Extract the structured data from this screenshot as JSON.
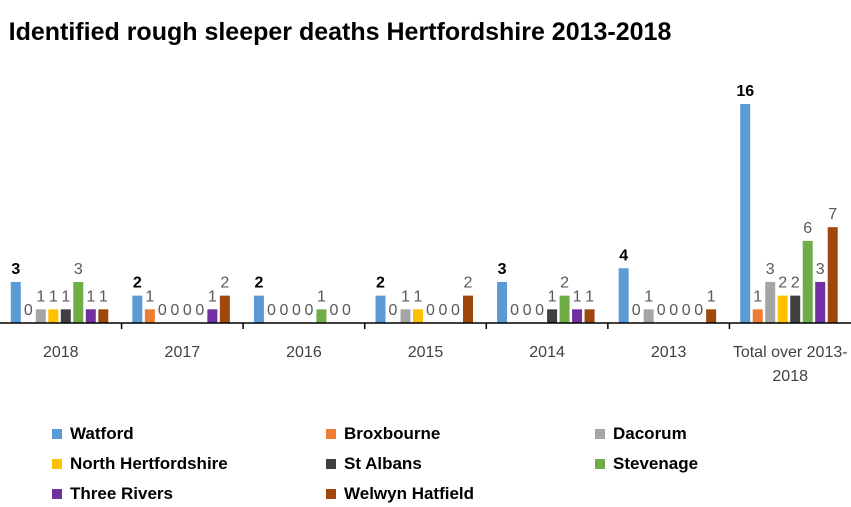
{
  "chart_data": {
    "type": "bar",
    "title": "Identified rough sleeper deaths Hertfordshire 2013-2018",
    "categories": [
      "2018",
      "2017",
      "2016",
      "2015",
      "2014",
      "2013",
      "Total over 2013-2018"
    ],
    "ylim": [
      0,
      16
    ],
    "series": [
      {
        "name": "Watford",
        "color": "#5b9bd5",
        "values": [
          3,
          2,
          2,
          2,
          3,
          4,
          16
        ]
      },
      {
        "name": "Broxbourne",
        "color": "#ed7d31",
        "values": [
          0,
          1,
          0,
          0,
          0,
          0,
          1
        ]
      },
      {
        "name": "Dacorum",
        "color": "#a5a5a5",
        "values": [
          1,
          0,
          0,
          1,
          0,
          1,
          3
        ]
      },
      {
        "name": "North Hertfordshire",
        "color": "#ffc000",
        "values": [
          1,
          0,
          0,
          1,
          0,
          0,
          2
        ]
      },
      {
        "name": "St Albans",
        "color": "#404040",
        "values": [
          1,
          0,
          0,
          0,
          1,
          0,
          2
        ]
      },
      {
        "name": "Stevenage",
        "color": "#70ad47",
        "values": [
          3,
          0,
          1,
          0,
          2,
          0,
          6
        ]
      },
      {
        "name": "Three Rivers",
        "color": "#7030a0",
        "values": [
          1,
          1,
          0,
          0,
          1,
          0,
          3
        ]
      },
      {
        "name": "Welwyn Hatfield",
        "color": "#9e480e",
        "values": [
          1,
          2,
          0,
          2,
          1,
          1,
          7
        ]
      }
    ]
  }
}
